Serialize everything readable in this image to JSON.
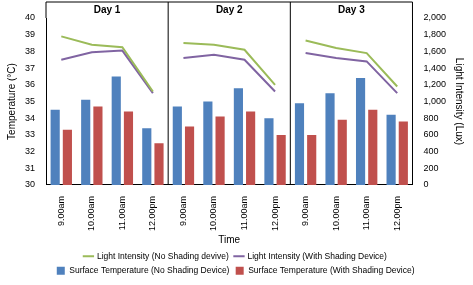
{
  "chart_data": {
    "type": "bar",
    "groups": [
      "Day 1",
      "Day 2",
      "Day 3"
    ],
    "categories": [
      "9.00am",
      "10.00am",
      "11.00am",
      "12.00pm",
      "9.00am",
      "10.00am",
      "11.00am",
      "12.00pm",
      "9.00am",
      "10.00am",
      "11.00am",
      "12.00pm"
    ],
    "x_label": "Time",
    "y_label": "Temperature (°C)",
    "y2_label": "Light Intensity (Lux)",
    "ylim": [
      30,
      40
    ],
    "yticks": [
      30,
      31,
      32,
      33,
      34,
      35,
      36,
      37,
      38,
      39,
      40
    ],
    "y2lim": [
      0,
      2000
    ],
    "y2ticks": [
      0,
      200,
      400,
      600,
      800,
      1000,
      1200,
      1400,
      1600,
      1800,
      2000
    ],
    "grid": false,
    "legend": "bottom",
    "series": [
      {
        "name": "Surface Temperature (No Shading Device)",
        "color": "#4f81bd",
        "type": "bar",
        "values": [
          34.5,
          35.1,
          36.5,
          33.4,
          34.7,
          35.0,
          35.8,
          34.0,
          34.9,
          35.5,
          36.4,
          34.2
        ]
      },
      {
        "name": "Surface Temperature (With Shading Device)",
        "color": "#c0504d",
        "type": "bar",
        "values": [
          33.3,
          34.7,
          34.4,
          32.5,
          33.5,
          34.1,
          34.4,
          33.0,
          33.0,
          33.9,
          34.5,
          33.8
        ]
      },
      {
        "name": "Light Intensity (No Shading devive)",
        "color": "#9bbb59",
        "type": "line",
        "axis": "y2",
        "values": [
          1780,
          1680,
          1650,
          1120,
          1700,
          1680,
          1620,
          1200,
          1730,
          1640,
          1580,
          1180
        ]
      },
      {
        "name": "Light Intensity (With Shading Device)",
        "color": "#8064a2",
        "type": "line",
        "axis": "y2",
        "values": [
          1500,
          1590,
          1610,
          1100,
          1520,
          1560,
          1500,
          1120,
          1580,
          1520,
          1480,
          1100
        ]
      }
    ]
  }
}
